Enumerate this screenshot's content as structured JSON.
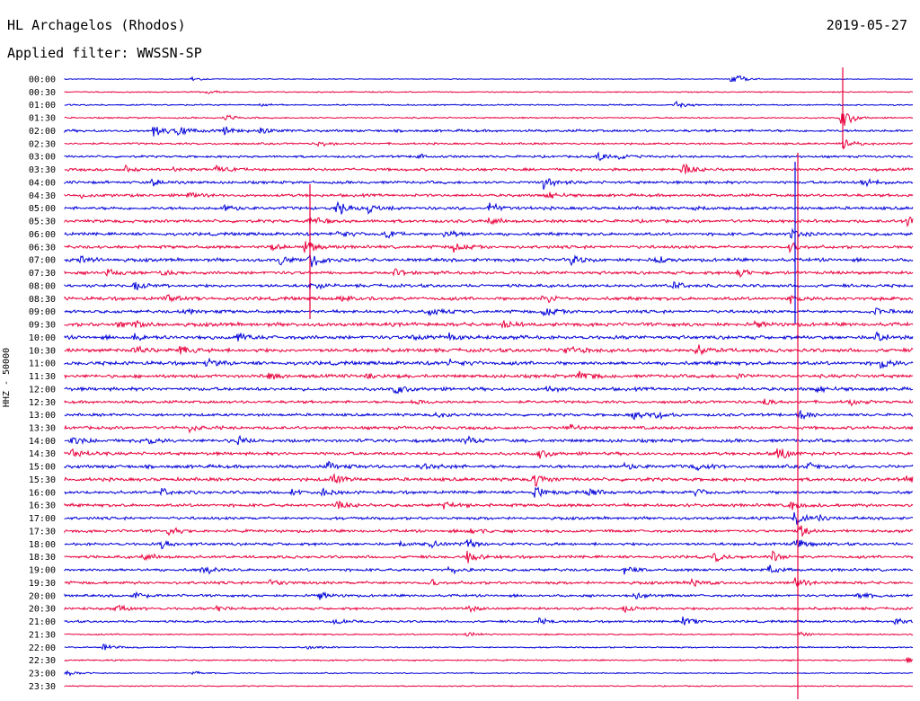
{
  "header": {
    "station": "HL Archagelos (Rhodos)",
    "date": "2019-05-27",
    "filter": "Applied filter: WWSSN-SP"
  },
  "chart_data": {
    "type": "line",
    "title": "HL Archagelos (Rhodos)",
    "channel_label": "HHZ - 50000",
    "colors": [
      "#0000d8",
      "#e8003c"
    ],
    "time_labels": [
      "00:00",
      "00:30",
      "01:00",
      "01:30",
      "02:00",
      "02:30",
      "03:00",
      "03:30",
      "04:00",
      "04:30",
      "05:00",
      "05:30",
      "06:00",
      "06:30",
      "07:00",
      "07:30",
      "08:00",
      "08:30",
      "09:00",
      "09:30",
      "10:00",
      "10:30",
      "11:00",
      "11:30",
      "12:00",
      "12:30",
      "13:00",
      "13:30",
      "14:00",
      "14:30",
      "15:00",
      "15:30",
      "16:00",
      "16:30",
      "17:00",
      "17:30",
      "18:00",
      "18:30",
      "19:00",
      "19:30",
      "20:00",
      "20:30",
      "21:00",
      "21:30",
      "22:00",
      "22:30",
      "23:00",
      "23:30"
    ],
    "noise_level": [
      0.3,
      0.4,
      0.5,
      0.5,
      0.9,
      0.7,
      0.8,
      1.0,
      1.0,
      1.0,
      1.1,
      1.1,
      1.1,
      1.1,
      1.2,
      1.1,
      1.1,
      1.2,
      1.1,
      1.3,
      1.3,
      1.3,
      1.3,
      1.2,
      1.2,
      1.0,
      1.0,
      1.1,
      1.2,
      1.1,
      1.2,
      1.2,
      1.1,
      1.1,
      1.0,
      1.0,
      1.0,
      1.0,
      1.0,
      1.0,
      0.9,
      0.9,
      0.8,
      0.5,
      0.5,
      0.5,
      0.4,
      0.4
    ]
  }
}
